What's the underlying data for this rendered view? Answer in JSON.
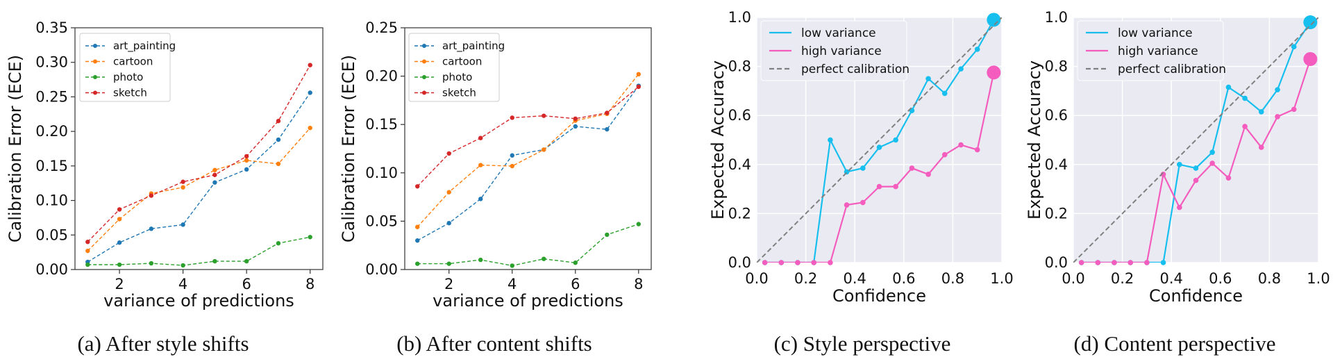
{
  "chart_data": [
    {
      "type": "line",
      "title": "",
      "caption": "(a) After style shifts",
      "xlabel": "variance of predictions",
      "ylabel": "Calibration Error (ECE)",
      "xlim": [
        0.6,
        8.4
      ],
      "ylim": [
        0,
        0.35
      ],
      "xticks": [
        2,
        4,
        6,
        8
      ],
      "xtick_labels": [
        "2",
        "4",
        "6",
        "8"
      ],
      "yticks": [
        0,
        0.05,
        0.1,
        0.15,
        0.2,
        0.25,
        0.3,
        0.35
      ],
      "ytick_labels": [
        "0.00",
        "0.05",
        "0.10",
        "0.15",
        "0.20",
        "0.25",
        "0.30",
        "0.35"
      ],
      "grid": false,
      "legend": "top-left",
      "x": [
        1,
        2,
        3,
        4,
        5,
        6,
        7,
        8
      ],
      "series": [
        {
          "name": "art_painting",
          "color": "#1f77b4",
          "style": "dashed-dot",
          "values": [
            0.011,
            0.039,
            0.059,
            0.065,
            0.126,
            0.145,
            0.188,
            0.256
          ]
        },
        {
          "name": "cartoon",
          "color": "#ff7f0e",
          "style": "dashed-dot",
          "values": [
            0.027,
            0.073,
            0.11,
            0.119,
            0.144,
            0.158,
            0.153,
            0.205
          ]
        },
        {
          "name": "photo",
          "color": "#2ca02c",
          "style": "dashed-dot",
          "values": [
            0.007,
            0.007,
            0.009,
            0.006,
            0.012,
            0.012,
            0.038,
            0.047
          ]
        },
        {
          "name": "sketch",
          "color": "#d62728",
          "style": "dashed-dot",
          "values": [
            0.04,
            0.087,
            0.107,
            0.127,
            0.137,
            0.164,
            0.215,
            0.296
          ]
        }
      ]
    },
    {
      "type": "line",
      "title": "",
      "caption": "(b) After content shifts",
      "xlabel": "variance of predictions",
      "ylabel": "Calibration Error (ECE)",
      "xlim": [
        0.6,
        8.4
      ],
      "ylim": [
        0,
        0.25
      ],
      "xticks": [
        2,
        4,
        6,
        8
      ],
      "xtick_labels": [
        "2",
        "4",
        "6",
        "8"
      ],
      "yticks": [
        0,
        0.05,
        0.1,
        0.15,
        0.2,
        0.25
      ],
      "ytick_labels": [
        "0.00",
        "0.05",
        "0.10",
        "0.15",
        "0.20",
        "0.25"
      ],
      "grid": false,
      "legend": "top-left",
      "x": [
        1,
        2,
        3,
        4,
        5,
        6,
        7,
        8
      ],
      "series": [
        {
          "name": "art_painting",
          "color": "#1f77b4",
          "style": "dashed-dot",
          "values": [
            0.03,
            0.048,
            0.073,
            0.118,
            0.124,
            0.148,
            0.145,
            0.19
          ]
        },
        {
          "name": "cartoon",
          "color": "#ff7f0e",
          "style": "dashed-dot",
          "values": [
            0.044,
            0.08,
            0.108,
            0.107,
            0.124,
            0.154,
            0.161,
            0.202
          ]
        },
        {
          "name": "photo",
          "color": "#2ca02c",
          "style": "dashed-dot",
          "values": [
            0.006,
            0.006,
            0.01,
            0.004,
            0.011,
            0.007,
            0.036,
            0.047
          ]
        },
        {
          "name": "sketch",
          "color": "#d62728",
          "style": "dashed-dot",
          "values": [
            0.086,
            0.12,
            0.136,
            0.157,
            0.159,
            0.156,
            0.162,
            0.189
          ]
        }
      ]
    },
    {
      "type": "line",
      "title": "",
      "caption": "(c) Style perspective",
      "xlabel": "Confidence",
      "ylabel": "Expected Accuracy",
      "xlim": [
        0,
        1
      ],
      "ylim": [
        0,
        1
      ],
      "xticks": [
        0,
        0.2,
        0.4,
        0.6,
        0.8,
        1.0
      ],
      "xtick_labels": [
        "0.0",
        "0.2",
        "0.4",
        "0.6",
        "0.8",
        "1.0"
      ],
      "yticks": [
        0,
        0.2,
        0.4,
        0.6,
        0.8,
        1.0
      ],
      "ytick_labels": [
        "0.0",
        "0.2",
        "0.4",
        "0.6",
        "0.8",
        "1.0"
      ],
      "grid": true,
      "legend": "top-left",
      "series": [
        {
          "name": "low variance",
          "color": "#17bfef",
          "style": "solid",
          "x": [
            0.033,
            0.1,
            0.167,
            0.233,
            0.3,
            0.367,
            0.433,
            0.5,
            0.567,
            0.633,
            0.7,
            0.767,
            0.833,
            0.9,
            0.967
          ],
          "values": [
            0,
            0,
            0,
            0,
            0.5,
            0.37,
            0.385,
            0.47,
            0.5,
            0.62,
            0.75,
            0.69,
            0.79,
            0.87,
            0.99
          ],
          "big_last": true
        },
        {
          "name": "high variance",
          "color": "#f45cbd",
          "style": "solid",
          "x": [
            0.033,
            0.1,
            0.167,
            0.233,
            0.3,
            0.367,
            0.433,
            0.5,
            0.567,
            0.633,
            0.7,
            0.767,
            0.833,
            0.9,
            0.967
          ],
          "values": [
            0,
            0,
            0,
            0,
            0,
            0.235,
            0.245,
            0.31,
            0.31,
            0.385,
            0.36,
            0.44,
            0.48,
            0.46,
            0.775
          ],
          "big_last": true
        },
        {
          "name": "perfect calibration",
          "color": "#808080",
          "style": "dashed",
          "x": [
            0,
            1
          ],
          "values": [
            0,
            1
          ]
        }
      ]
    },
    {
      "type": "line",
      "title": "",
      "caption": "(d) Content perspective",
      "xlabel": "Confidence",
      "ylabel": "Expected Accuracy",
      "xlim": [
        0,
        1
      ],
      "ylim": [
        0,
        1
      ],
      "xticks": [
        0,
        0.2,
        0.4,
        0.6,
        0.8,
        1.0
      ],
      "xtick_labels": [
        "0.0",
        "0.2",
        "0.4",
        "0.6",
        "0.8",
        "1.0"
      ],
      "yticks": [
        0,
        0.2,
        0.4,
        0.6,
        0.8,
        1.0
      ],
      "ytick_labels": [
        "0.0",
        "0.2",
        "0.4",
        "0.6",
        "0.8",
        "1.0"
      ],
      "grid": true,
      "legend": "top-left",
      "series": [
        {
          "name": "low variance",
          "color": "#17bfef",
          "style": "solid",
          "x": [
            0.033,
            0.1,
            0.167,
            0.233,
            0.3,
            0.367,
            0.433,
            0.5,
            0.567,
            0.633,
            0.7,
            0.767,
            0.833,
            0.9,
            0.967
          ],
          "values": [
            0,
            0,
            0,
            0,
            0,
            0,
            0.4,
            0.385,
            0.45,
            0.715,
            0.67,
            0.615,
            0.705,
            0.88,
            0.98
          ],
          "big_last": true
        },
        {
          "name": "high variance",
          "color": "#f45cbd",
          "style": "solid",
          "x": [
            0.033,
            0.1,
            0.167,
            0.233,
            0.3,
            0.367,
            0.433,
            0.5,
            0.567,
            0.633,
            0.7,
            0.767,
            0.833,
            0.9,
            0.967
          ],
          "values": [
            0,
            0,
            0,
            0,
            0,
            0.36,
            0.225,
            0.335,
            0.405,
            0.345,
            0.555,
            0.47,
            0.595,
            0.625,
            0.83
          ],
          "big_last": true
        },
        {
          "name": "perfect calibration",
          "color": "#808080",
          "style": "dashed",
          "x": [
            0,
            1
          ],
          "values": [
            0,
            1
          ]
        }
      ]
    }
  ]
}
